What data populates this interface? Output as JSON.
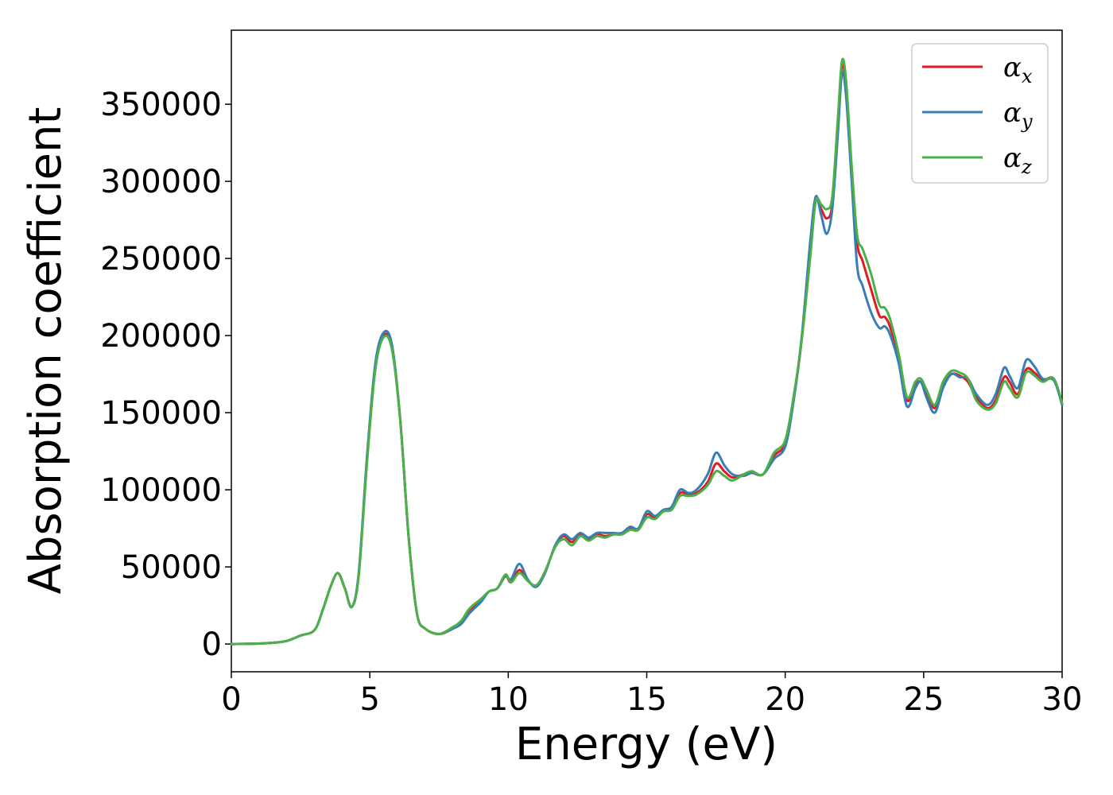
{
  "chart_data": {
    "type": "line",
    "title": "",
    "xlabel": "Energy (eV)",
    "ylabel": "Absorption coefficient",
    "xlim": [
      0,
      30
    ],
    "ylim": [
      -18000,
      398000
    ],
    "xticks": [
      0,
      5,
      10,
      15,
      20,
      25,
      30
    ],
    "yticks": [
      0,
      50000,
      100000,
      150000,
      200000,
      250000,
      300000,
      350000
    ],
    "grid": false,
    "legend_position": "top-right",
    "series": [
      {
        "name": "α",
        "subscript": "x",
        "color": "#e41a1c",
        "points": [
          [
            0,
            0
          ],
          [
            1,
            300
          ],
          [
            1.5,
            800
          ],
          [
            2,
            2000
          ],
          [
            2.5,
            5500
          ],
          [
            3,
            9000
          ],
          [
            3.3,
            22000
          ],
          [
            3.6,
            38000
          ],
          [
            3.85,
            46000
          ],
          [
            4.1,
            36000
          ],
          [
            4.35,
            24000
          ],
          [
            4.6,
            45000
          ],
          [
            4.9,
            120000
          ],
          [
            5.2,
            180000
          ],
          [
            5.5,
            200000
          ],
          [
            5.8,
            193000
          ],
          [
            6.1,
            145000
          ],
          [
            6.4,
            70000
          ],
          [
            6.7,
            20000
          ],
          [
            7,
            10000
          ],
          [
            7.5,
            6500
          ],
          [
            8,
            10000
          ],
          [
            8.3,
            14000
          ],
          [
            8.6,
            22000
          ],
          [
            9,
            28000
          ],
          [
            9.3,
            34000
          ],
          [
            9.6,
            36000
          ],
          [
            9.9,
            44000
          ],
          [
            10.1,
            40000
          ],
          [
            10.4,
            48000
          ],
          [
            10.7,
            41000
          ],
          [
            11,
            38000
          ],
          [
            11.3,
            45000
          ],
          [
            11.7,
            64000
          ],
          [
            12,
            70000
          ],
          [
            12.3,
            66000
          ],
          [
            12.6,
            71000
          ],
          [
            12.9,
            68000
          ],
          [
            13.2,
            71000
          ],
          [
            13.5,
            70000
          ],
          [
            13.8,
            71000
          ],
          [
            14.1,
            72000
          ],
          [
            14.4,
            75000
          ],
          [
            14.7,
            74000
          ],
          [
            15,
            84000
          ],
          [
            15.3,
            82000
          ],
          [
            15.6,
            86000
          ],
          [
            15.9,
            88000
          ],
          [
            16.2,
            98000
          ],
          [
            16.5,
            97000
          ],
          [
            16.8,
            98000
          ],
          [
            17.2,
            105000
          ],
          [
            17.5,
            117000
          ],
          [
            17.8,
            112000
          ],
          [
            18.1,
            108000
          ],
          [
            18.5,
            110000
          ],
          [
            18.8,
            111000
          ],
          [
            19.2,
            110000
          ],
          [
            19.6,
            122000
          ],
          [
            20,
            130000
          ],
          [
            20.3,
            158000
          ],
          [
            20.6,
            198000
          ],
          [
            20.9,
            255000
          ],
          [
            21.1,
            288000
          ],
          [
            21.3,
            282000
          ],
          [
            21.5,
            276000
          ],
          [
            21.7,
            285000
          ],
          [
            21.9,
            335000
          ],
          [
            22.05,
            375000
          ],
          [
            22.2,
            360000
          ],
          [
            22.4,
            305000
          ],
          [
            22.6,
            260000
          ],
          [
            22.8,
            248000
          ],
          [
            23.1,
            230000
          ],
          [
            23.4,
            213000
          ],
          [
            23.6,
            212000
          ],
          [
            23.8,
            205000
          ],
          [
            24.1,
            185000
          ],
          [
            24.4,
            158000
          ],
          [
            24.7,
            168000
          ],
          [
            24.9,
            170000
          ],
          [
            25.1,
            163000
          ],
          [
            25.4,
            153000
          ],
          [
            25.7,
            168000
          ],
          [
            26,
            175000
          ],
          [
            26.3,
            174000
          ],
          [
            26.6,
            170000
          ],
          [
            26.9,
            160000
          ],
          [
            27.3,
            153000
          ],
          [
            27.6,
            158000
          ],
          [
            27.9,
            173000
          ],
          [
            28.1,
            170000
          ],
          [
            28.4,
            162000
          ],
          [
            28.7,
            178000
          ],
          [
            29,
            176000
          ],
          [
            29.3,
            171000
          ],
          [
            29.7,
            172000
          ],
          [
            30,
            155000
          ]
        ]
      },
      {
        "name": "α",
        "subscript": "y",
        "color": "#377eb8",
        "points": [
          [
            0,
            0
          ],
          [
            1,
            300
          ],
          [
            1.5,
            800
          ],
          [
            2,
            2000
          ],
          [
            2.5,
            5500
          ],
          [
            3,
            9000
          ],
          [
            3.3,
            22000
          ],
          [
            3.6,
            38000
          ],
          [
            3.85,
            46000
          ],
          [
            4.1,
            36000
          ],
          [
            4.35,
            24000
          ],
          [
            4.6,
            46000
          ],
          [
            4.9,
            122000
          ],
          [
            5.2,
            182000
          ],
          [
            5.5,
            202000
          ],
          [
            5.8,
            194000
          ],
          [
            6.1,
            145000
          ],
          [
            6.4,
            70000
          ],
          [
            6.7,
            20000
          ],
          [
            7,
            10000
          ],
          [
            7.5,
            6500
          ],
          [
            8,
            10000
          ],
          [
            8.3,
            13000
          ],
          [
            8.6,
            20000
          ],
          [
            9,
            27000
          ],
          [
            9.3,
            34000
          ],
          [
            9.6,
            36000
          ],
          [
            9.9,
            44000
          ],
          [
            10.1,
            42000
          ],
          [
            10.4,
            52000
          ],
          [
            10.7,
            42000
          ],
          [
            11,
            37000
          ],
          [
            11.3,
            45000
          ],
          [
            11.7,
            64000
          ],
          [
            12,
            71000
          ],
          [
            12.3,
            68000
          ],
          [
            12.6,
            72000
          ],
          [
            12.9,
            69000
          ],
          [
            13.2,
            72000
          ],
          [
            13.5,
            72000
          ],
          [
            13.8,
            72000
          ],
          [
            14.1,
            72000
          ],
          [
            14.4,
            76000
          ],
          [
            14.7,
            75000
          ],
          [
            15,
            86000
          ],
          [
            15.3,
            83000
          ],
          [
            15.6,
            87000
          ],
          [
            15.9,
            89000
          ],
          [
            16.2,
            100000
          ],
          [
            16.5,
            98000
          ],
          [
            16.8,
            100000
          ],
          [
            17.2,
            110000
          ],
          [
            17.5,
            124000
          ],
          [
            17.8,
            116000
          ],
          [
            18.1,
            110000
          ],
          [
            18.5,
            109000
          ],
          [
            18.8,
            111000
          ],
          [
            19.2,
            110000
          ],
          [
            19.6,
            120000
          ],
          [
            20,
            128000
          ],
          [
            20.3,
            157000
          ],
          [
            20.6,
            200000
          ],
          [
            20.9,
            260000
          ],
          [
            21.1,
            290000
          ],
          [
            21.3,
            278000
          ],
          [
            21.5,
            266000
          ],
          [
            21.7,
            282000
          ],
          [
            21.9,
            330000
          ],
          [
            22.05,
            370000
          ],
          [
            22.2,
            355000
          ],
          [
            22.4,
            300000
          ],
          [
            22.6,
            245000
          ],
          [
            22.8,
            232000
          ],
          [
            23.1,
            215000
          ],
          [
            23.4,
            205000
          ],
          [
            23.6,
            206000
          ],
          [
            23.8,
            200000
          ],
          [
            24.1,
            182000
          ],
          [
            24.4,
            154000
          ],
          [
            24.7,
            166000
          ],
          [
            24.9,
            170000
          ],
          [
            25.1,
            160000
          ],
          [
            25.4,
            150000
          ],
          [
            25.7,
            166000
          ],
          [
            26,
            175000
          ],
          [
            26.3,
            173000
          ],
          [
            26.6,
            172000
          ],
          [
            26.9,
            162000
          ],
          [
            27.3,
            155000
          ],
          [
            27.6,
            162000
          ],
          [
            27.9,
            179000
          ],
          [
            28.1,
            174000
          ],
          [
            28.4,
            166000
          ],
          [
            28.7,
            184000
          ],
          [
            29,
            180000
          ],
          [
            29.3,
            172000
          ],
          [
            29.7,
            171000
          ],
          [
            30,
            155000
          ]
        ]
      },
      {
        "name": "α",
        "subscript": "z",
        "color": "#4daf4a",
        "points": [
          [
            0,
            0
          ],
          [
            1,
            300
          ],
          [
            1.5,
            800
          ],
          [
            2,
            2000
          ],
          [
            2.5,
            5500
          ],
          [
            3,
            9000
          ],
          [
            3.3,
            22000
          ],
          [
            3.6,
            38000
          ],
          [
            3.85,
            46000
          ],
          [
            4.1,
            36000
          ],
          [
            4.35,
            24000
          ],
          [
            4.6,
            44000
          ],
          [
            4.9,
            118000
          ],
          [
            5.2,
            178000
          ],
          [
            5.5,
            199000
          ],
          [
            5.8,
            191000
          ],
          [
            6.1,
            145000
          ],
          [
            6.4,
            70000
          ],
          [
            6.7,
            20000
          ],
          [
            7,
            10000
          ],
          [
            7.5,
            6500
          ],
          [
            8,
            11000
          ],
          [
            8.3,
            15000
          ],
          [
            8.6,
            23000
          ],
          [
            9,
            29000
          ],
          [
            9.3,
            34000
          ],
          [
            9.6,
            36000
          ],
          [
            9.9,
            45000
          ],
          [
            10.1,
            40000
          ],
          [
            10.4,
            46000
          ],
          [
            10.7,
            41000
          ],
          [
            11,
            38000
          ],
          [
            11.3,
            46000
          ],
          [
            11.7,
            63000
          ],
          [
            12,
            68000
          ],
          [
            12.3,
            64000
          ],
          [
            12.6,
            70000
          ],
          [
            12.9,
            67000
          ],
          [
            13.2,
            70000
          ],
          [
            13.5,
            69000
          ],
          [
            13.8,
            71000
          ],
          [
            14.1,
            71000
          ],
          [
            14.4,
            74000
          ],
          [
            14.7,
            74000
          ],
          [
            15,
            82000
          ],
          [
            15.3,
            81000
          ],
          [
            15.6,
            86000
          ],
          [
            15.9,
            87000
          ],
          [
            16.2,
            96000
          ],
          [
            16.5,
            96000
          ],
          [
            16.8,
            97000
          ],
          [
            17.2,
            103000
          ],
          [
            17.5,
            112000
          ],
          [
            17.8,
            109000
          ],
          [
            18.1,
            106000
          ],
          [
            18.5,
            110000
          ],
          [
            18.8,
            112000
          ],
          [
            19.2,
            110000
          ],
          [
            19.6,
            124000
          ],
          [
            20,
            132000
          ],
          [
            20.3,
            160000
          ],
          [
            20.6,
            198000
          ],
          [
            20.9,
            250000
          ],
          [
            21.1,
            287000
          ],
          [
            21.3,
            285000
          ],
          [
            21.5,
            282000
          ],
          [
            21.7,
            290000
          ],
          [
            21.9,
            340000
          ],
          [
            22.05,
            378000
          ],
          [
            22.2,
            365000
          ],
          [
            22.4,
            310000
          ],
          [
            22.6,
            265000
          ],
          [
            22.8,
            256000
          ],
          [
            23.1,
            240000
          ],
          [
            23.4,
            220000
          ],
          [
            23.6,
            218000
          ],
          [
            23.8,
            210000
          ],
          [
            24.1,
            188000
          ],
          [
            24.4,
            160000
          ],
          [
            24.7,
            170000
          ],
          [
            24.9,
            172000
          ],
          [
            25.1,
            165000
          ],
          [
            25.4,
            155000
          ],
          [
            25.7,
            170000
          ],
          [
            26,
            177000
          ],
          [
            26.3,
            176000
          ],
          [
            26.6,
            172000
          ],
          [
            26.9,
            158000
          ],
          [
            27.3,
            152000
          ],
          [
            27.6,
            156000
          ],
          [
            27.9,
            170000
          ],
          [
            28.1,
            166000
          ],
          [
            28.4,
            160000
          ],
          [
            28.7,
            176000
          ],
          [
            29,
            174000
          ],
          [
            29.3,
            170000
          ],
          [
            29.7,
            172000
          ],
          [
            30,
            156000
          ]
        ]
      }
    ]
  }
}
